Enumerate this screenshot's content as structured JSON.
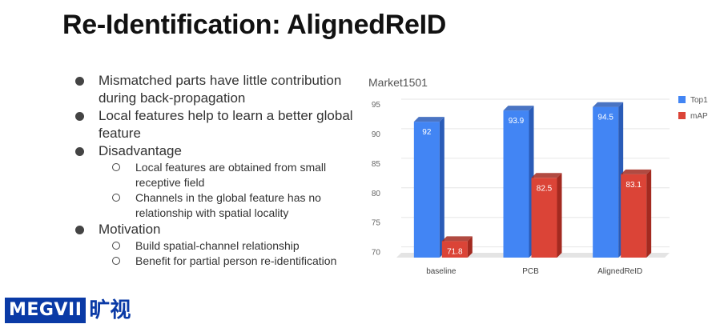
{
  "slide": {
    "title": "Re-Identification: AlignedReID"
  },
  "bullets": [
    {
      "text": "Mismatched parts have little contribution during back-propagation",
      "sub": []
    },
    {
      "text": "Local features help to learn a better global feature",
      "sub": []
    },
    {
      "text": "Disadvantage",
      "sub": [
        "Local features are obtained from small receptive field",
        "Channels in the global feature has no relationship with spatial locality"
      ]
    },
    {
      "text": "Motivation",
      "sub": [
        "Build spatial-channel relationship",
        "Benefit for partial person re-identification"
      ]
    }
  ],
  "logo": {
    "brand": "MEGVII",
    "cn": "旷视"
  },
  "chart_data": {
    "type": "bar",
    "title": "Market1501",
    "categories": [
      "baseline",
      "PCB",
      "AlignedReID"
    ],
    "series": [
      {
        "name": "Top1",
        "values": [
          92,
          93.9,
          94.5
        ],
        "color": "#4285f4",
        "side": "#2a5cb8"
      },
      {
        "name": "mAP",
        "values": [
          71.8,
          82.5,
          83.1
        ],
        "color": "#db4437",
        "side": "#a32a20"
      }
    ],
    "yticks": [
      70,
      75,
      80,
      85,
      90,
      95
    ],
    "ylim": [
      69,
      95
    ],
    "legend": "right",
    "grid": true
  }
}
